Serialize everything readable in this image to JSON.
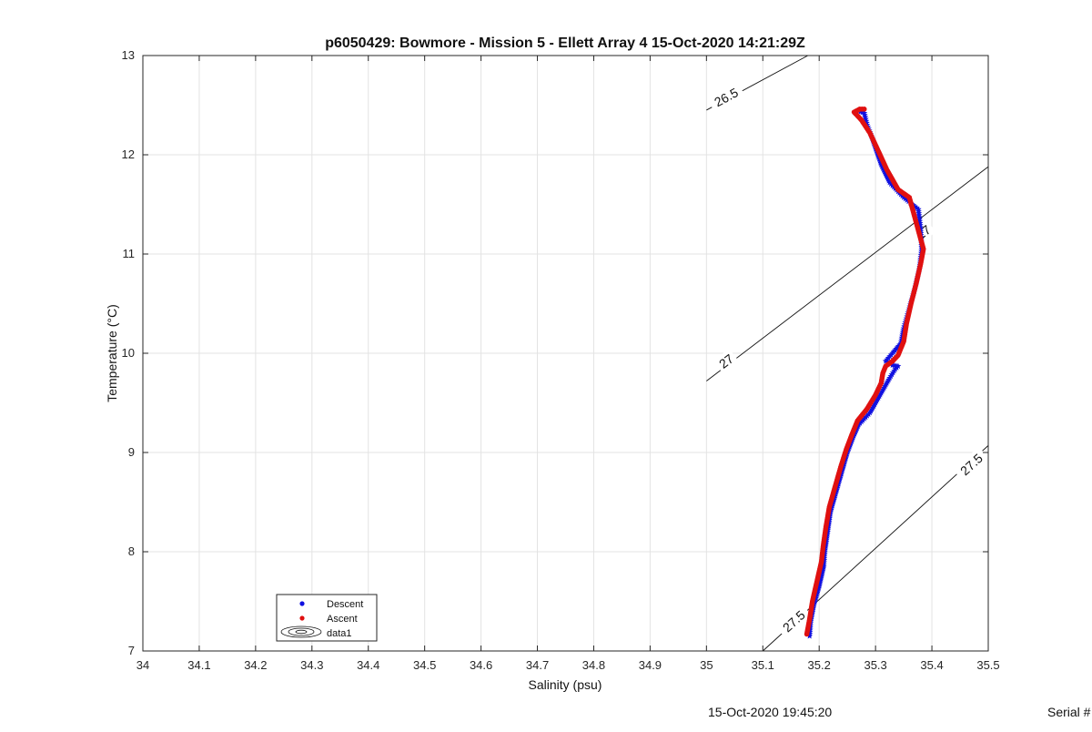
{
  "chart_data": {
    "type": "scatter",
    "title": "p6050429: Bowmore - Mission 5 - Ellett Array 4 15-Oct-2020 14:21:29Z",
    "xlabel": "Salinity (psu)",
    "ylabel": "Temperature (°C)",
    "xlim": [
      34,
      35.5
    ],
    "ylim": [
      7,
      13
    ],
    "xticks": [
      "34",
      "34.1",
      "34.2",
      "34.3",
      "34.4",
      "34.5",
      "34.6",
      "34.7",
      "34.8",
      "34.9",
      "35",
      "35.1",
      "35.2",
      "35.3",
      "35.4",
      "35.5"
    ],
    "yticks": [
      "7",
      "8",
      "9",
      "10",
      "11",
      "12",
      "13"
    ],
    "grid": true,
    "legend_position": "bottom-left",
    "legend": [
      "Descent",
      "Ascent",
      "data1"
    ],
    "series": [
      {
        "name": "Descent",
        "color": "#1010e0",
        "marker": "pentagram",
        "points": [
          [
            35.183,
            7.15
          ],
          [
            35.185,
            7.3
          ],
          [
            35.19,
            7.45
          ],
          [
            35.2,
            7.65
          ],
          [
            35.208,
            7.85
          ],
          [
            35.21,
            8.0
          ],
          [
            35.215,
            8.2
          ],
          [
            35.22,
            8.4
          ],
          [
            35.23,
            8.6
          ],
          [
            35.24,
            8.8
          ],
          [
            35.25,
            9.0
          ],
          [
            35.26,
            9.15
          ],
          [
            35.27,
            9.28
          ],
          [
            35.29,
            9.4
          ],
          [
            35.305,
            9.55
          ],
          [
            35.315,
            9.65
          ],
          [
            35.325,
            9.75
          ],
          [
            35.335,
            9.84
          ],
          [
            35.34,
            9.87
          ],
          [
            35.33,
            9.88
          ],
          [
            35.318,
            9.92
          ],
          [
            35.33,
            10.0
          ],
          [
            35.345,
            10.1
          ],
          [
            35.35,
            10.25
          ],
          [
            35.36,
            10.45
          ],
          [
            35.37,
            10.65
          ],
          [
            35.378,
            10.85
          ],
          [
            35.382,
            11.05
          ],
          [
            35.38,
            11.25
          ],
          [
            35.376,
            11.45
          ],
          [
            35.35,
            11.57
          ],
          [
            35.325,
            11.72
          ],
          [
            35.31,
            11.9
          ],
          [
            35.295,
            12.15
          ],
          [
            35.285,
            12.3
          ],
          [
            35.28,
            12.42
          ],
          [
            35.27,
            12.44
          ],
          [
            35.263,
            12.43
          ]
        ]
      },
      {
        "name": "Ascent",
        "color": "#e01010",
        "marker": "circle",
        "points": [
          [
            35.178,
            7.17
          ],
          [
            35.183,
            7.32
          ],
          [
            35.188,
            7.5
          ],
          [
            35.196,
            7.7
          ],
          [
            35.204,
            7.9
          ],
          [
            35.207,
            8.05
          ],
          [
            35.212,
            8.25
          ],
          [
            35.218,
            8.45
          ],
          [
            35.228,
            8.65
          ],
          [
            35.238,
            8.85
          ],
          [
            35.248,
            9.03
          ],
          [
            35.258,
            9.18
          ],
          [
            35.268,
            9.32
          ],
          [
            35.285,
            9.44
          ],
          [
            35.3,
            9.58
          ],
          [
            35.31,
            9.7
          ],
          [
            35.313,
            9.8
          ],
          [
            35.318,
            9.87
          ],
          [
            35.33,
            9.92
          ],
          [
            35.34,
            9.98
          ],
          [
            35.35,
            10.12
          ],
          [
            35.355,
            10.3
          ],
          [
            35.363,
            10.5
          ],
          [
            35.372,
            10.7
          ],
          [
            35.38,
            10.9
          ],
          [
            35.385,
            11.05
          ],
          [
            35.36,
            11.57
          ],
          [
            35.34,
            11.65
          ],
          [
            35.32,
            11.85
          ],
          [
            35.308,
            12.0
          ],
          [
            35.29,
            12.22
          ],
          [
            35.275,
            12.35
          ],
          [
            35.262,
            12.43
          ],
          [
            35.272,
            12.46
          ],
          [
            35.28,
            12.46
          ]
        ]
      }
    ],
    "contours": [
      {
        "label": "26.5",
        "from": [
          35.0,
          12.45
        ],
        "to": [
          35.18,
          13.0
        ],
        "label_at": [
          35.035,
          12.58
        ]
      },
      {
        "label": "27",
        "from": [
          35.0,
          9.72
        ],
        "to": [
          35.5,
          11.88
        ],
        "label_at": [
          35.035,
          9.92
        ],
        "label_at_2": [
          35.385,
          11.22
        ]
      },
      {
        "label": "27.5",
        "from": [
          35.1,
          7.0
        ],
        "to": [
          35.5,
          9.07
        ],
        "label_at": [
          35.155,
          7.3
        ],
        "label_at_2": [
          35.47,
          8.88
        ]
      }
    ]
  },
  "footer": {
    "timestamp": "15-Oct-2020 19:45:20",
    "serial": "Serial #"
  }
}
